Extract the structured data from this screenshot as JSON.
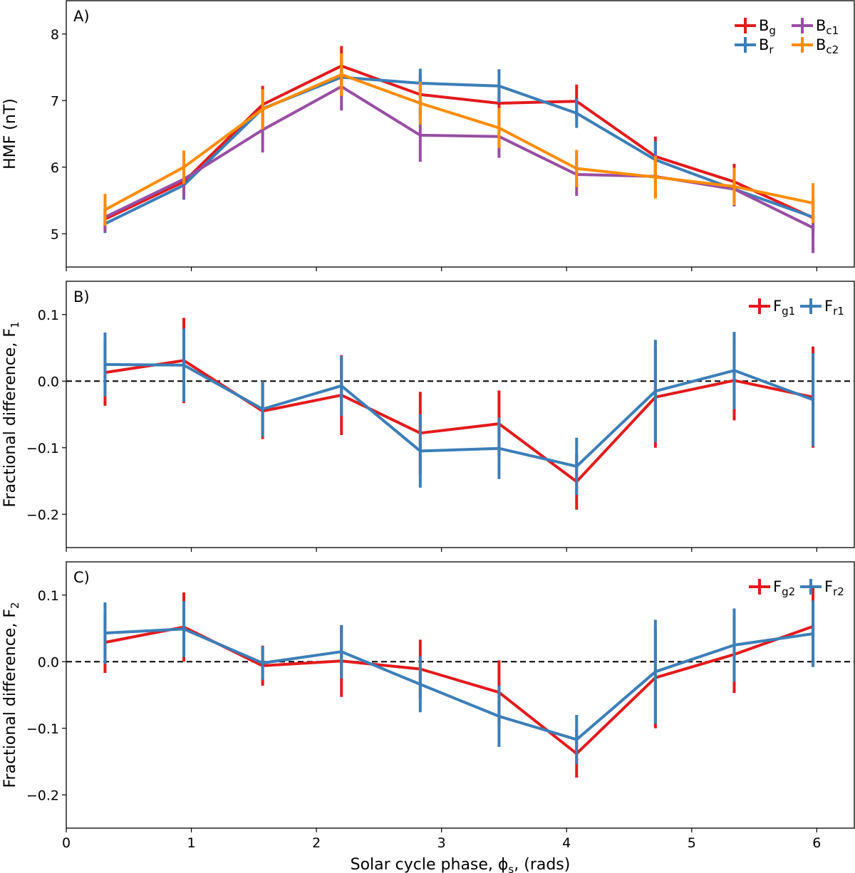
{
  "figure": {
    "xlabel": "Solar cycle phase, ϕs, (rads)",
    "xlabel_main": "Solar cycle phase, ϕ",
    "xlabel_sub": "s",
    "xlabel_tail": ", (rads)"
  },
  "chart_data": [
    {
      "type": "line",
      "panel_label": "A)",
      "ylabel": "HMF (nT)",
      "ylabel_main": "HMF (nT)",
      "ylabel_sub": "",
      "xlim": [
        0,
        6.3
      ],
      "ylim": [
        4.5,
        8.5
      ],
      "xticks": [
        0,
        1,
        2,
        3,
        4,
        5,
        6
      ],
      "yticks": [
        5,
        6,
        7,
        8
      ],
      "show_xtick_labels": false,
      "zero_line": false,
      "legend": {
        "placement": "top-right",
        "columns": 2
      },
      "x": [
        0.31,
        0.94,
        1.57,
        2.2,
        2.83,
        3.46,
        4.08,
        4.71,
        5.34,
        5.97
      ],
      "series": [
        {
          "name": "Bg",
          "label_main": "B",
          "label_sub": "g",
          "color": "#e31a1c",
          "values": [
            5.22,
            5.78,
            6.94,
            7.52,
            7.09,
            6.96,
            6.99,
            6.16,
            5.78,
            5.24
          ],
          "errors": [
            0.14,
            0.22,
            0.28,
            0.3,
            0.3,
            0.28,
            0.25,
            0.3,
            0.27,
            0.3
          ]
        },
        {
          "name": "Br",
          "label_main": "B",
          "label_sub": "r",
          "color": "#3c7eb8",
          "values": [
            5.15,
            5.73,
            6.88,
            7.35,
            7.26,
            7.22,
            6.81,
            6.11,
            5.67,
            5.25
          ],
          "errors": [
            0.14,
            0.22,
            0.28,
            0.3,
            0.22,
            0.25,
            0.22,
            0.28,
            0.2,
            0.28
          ]
        },
        {
          "name": "Bc1",
          "label_main": "B",
          "label_sub": "c1",
          "color": "#984ea3",
          "values": [
            5.25,
            5.82,
            6.56,
            7.21,
            6.48,
            6.46,
            5.89,
            5.86,
            5.67,
            5.09
          ],
          "errors": [
            0.22,
            0.3,
            0.34,
            0.36,
            0.4,
            0.32,
            0.32,
            0.32,
            0.26,
            0.38
          ]
        },
        {
          "name": "Bc2",
          "label_main": "B",
          "label_sub": "c2",
          "color": "#ff8c00",
          "values": [
            5.36,
            6.0,
            6.87,
            7.39,
            6.96,
            6.59,
            5.98,
            5.85,
            5.71,
            5.46
          ],
          "errors": [
            0.24,
            0.25,
            0.3,
            0.32,
            0.32,
            0.3,
            0.28,
            0.32,
            0.28,
            0.3
          ]
        }
      ]
    },
    {
      "type": "line",
      "panel_label": "B)",
      "ylabel": "Fractional difference, F1",
      "ylabel_main": "Fractional difference, F",
      "ylabel_sub": "1",
      "xlim": [
        0,
        6.3
      ],
      "ylim": [
        -0.25,
        0.15
      ],
      "xticks": [
        0,
        1,
        2,
        3,
        4,
        5,
        6
      ],
      "yticks": [
        -0.2,
        -0.1,
        0.0,
        0.1
      ],
      "ytick_labels": [
        "−0.2",
        "−0.1",
        "0.0",
        "0.1"
      ],
      "show_xtick_labels": false,
      "zero_line": true,
      "legend": {
        "placement": "top-right",
        "columns": 2
      },
      "x": [
        0.31,
        0.94,
        1.57,
        2.2,
        2.83,
        3.46,
        4.08,
        4.71,
        5.34,
        5.97
      ],
      "series": [
        {
          "name": "Fg1",
          "label_main": "F",
          "label_sub": "g1",
          "color": "#e31a1c",
          "values": [
            0.013,
            0.031,
            -0.045,
            -0.021,
            -0.078,
            -0.064,
            -0.151,
            -0.024,
            0.001,
            -0.024
          ],
          "errors": [
            0.05,
            0.064,
            0.042,
            0.06,
            0.062,
            0.05,
            0.042,
            0.076,
            0.06,
            0.076
          ]
        },
        {
          "name": "Fr1",
          "label_main": "F",
          "label_sub": "r1",
          "color": "#3c7eb8",
          "values": [
            0.025,
            0.024,
            -0.042,
            -0.007,
            -0.105,
            -0.101,
            -0.128,
            -0.015,
            0.016,
            -0.028
          ],
          "errors": [
            0.048,
            0.055,
            0.042,
            0.045,
            0.055,
            0.046,
            0.043,
            0.077,
            0.058,
            0.07
          ]
        }
      ]
    },
    {
      "type": "line",
      "panel_label": "C)",
      "ylabel": "Fractional difference, F2",
      "ylabel_main": "Fractional difference, F",
      "ylabel_sub": "2",
      "xlim": [
        0,
        6.3
      ],
      "ylim": [
        -0.25,
        0.15
      ],
      "xticks": [
        0,
        1,
        2,
        3,
        4,
        5,
        6
      ],
      "yticks": [
        -0.2,
        -0.1,
        0.0,
        0.1
      ],
      "ytick_labels": [
        "−0.2",
        "−0.1",
        "0.0",
        "0.1"
      ],
      "show_xtick_labels": true,
      "zero_line": true,
      "legend": {
        "placement": "top-right",
        "columns": 2
      },
      "x": [
        0.31,
        0.94,
        1.57,
        2.2,
        2.83,
        3.46,
        4.08,
        4.71,
        5.34,
        5.97
      ],
      "series": [
        {
          "name": "Fg2",
          "label_main": "F",
          "label_sub": "g2",
          "color": "#e31a1c",
          "values": [
            0.029,
            0.052,
            -0.006,
            0.001,
            -0.011,
            -0.046,
            -0.138,
            -0.024,
            0.011,
            0.053
          ],
          "errors": [
            0.046,
            0.052,
            0.03,
            0.054,
            0.044,
            0.048,
            0.036,
            0.076,
            0.058,
            0.06
          ]
        },
        {
          "name": "Fr2",
          "label_main": "F",
          "label_sub": "r2",
          "color": "#3c7eb8",
          "values": [
            0.043,
            0.049,
            -0.002,
            0.015,
            -0.034,
            -0.082,
            -0.117,
            -0.015,
            0.025,
            0.042
          ],
          "errors": [
            0.046,
            0.042,
            0.025,
            0.04,
            0.042,
            0.046,
            0.037,
            0.078,
            0.055,
            0.05
          ]
        }
      ]
    }
  ]
}
